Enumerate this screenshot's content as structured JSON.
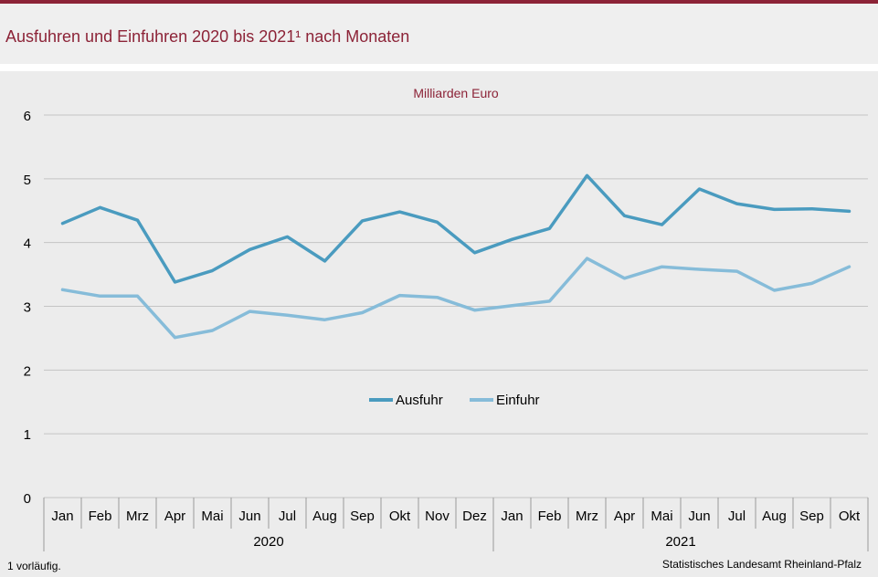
{
  "title": "Ausfuhren und Einfuhren 2020 bis 2021¹ nach Monaten",
  "footnote": "1 vorläufig.",
  "source": "Statistisches Landesamt Rheinland-Pfalz",
  "colors": {
    "accent": "#8c2337",
    "ausfuhr": "#4a9bbf",
    "einfuhr": "#86bcd9",
    "grid": "#c4c4c4"
  },
  "chart_data": {
    "type": "line",
    "title": "",
    "unit_label": "Milliarden Euro",
    "xlabel": "",
    "ylabel": "",
    "ylim": [
      0,
      6
    ],
    "yticks": [
      0,
      1,
      2,
      3,
      4,
      5,
      6
    ],
    "grid": true,
    "legend_position": "center",
    "categories": [
      "Jan",
      "Feb",
      "Mrz",
      "Apr",
      "Mai",
      "Jun",
      "Jul",
      "Aug",
      "Sep",
      "Okt",
      "Nov",
      "Dez",
      "Jan",
      "Feb",
      "Mrz",
      "Apr",
      "Mai",
      "Jun",
      "Jul",
      "Aug",
      "Sep",
      "Okt"
    ],
    "groups": [
      {
        "label": "2020",
        "count": 12
      },
      {
        "label": "2021",
        "count": 10
      }
    ],
    "series": [
      {
        "name": "Ausfuhr",
        "values": [
          4.3,
          4.55,
          4.35,
          3.38,
          3.56,
          3.89,
          4.09,
          3.71,
          4.34,
          4.48,
          4.32,
          3.84,
          4.05,
          4.22,
          5.05,
          4.42,
          4.28,
          4.84,
          4.61,
          4.52,
          4.53,
          4.49
        ]
      },
      {
        "name": "Einfuhr",
        "values": [
          3.26,
          3.16,
          3.16,
          2.51,
          2.62,
          2.92,
          2.86,
          2.79,
          2.9,
          3.17,
          3.14,
          2.94,
          3.01,
          3.08,
          3.75,
          3.44,
          3.62,
          3.58,
          3.55,
          3.25,
          3.36,
          3.62
        ]
      }
    ]
  }
}
